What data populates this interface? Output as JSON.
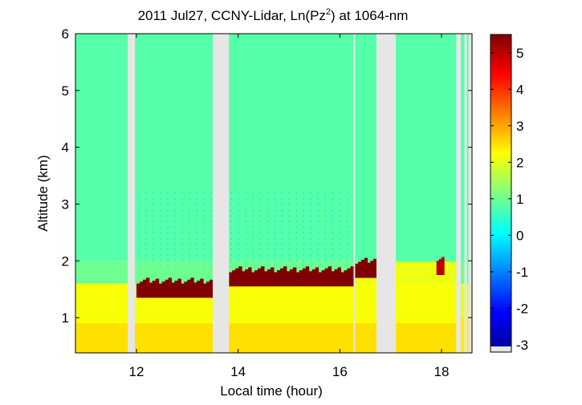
{
  "chart_data": {
    "type": "heatmap",
    "title": {
      "prefix": "2011 Jul27, CCNY-Lidar, Ln(Pz",
      "superscript": "2",
      "suffix": ") at 1064-nm"
    },
    "xlabel": "Local time (hour)",
    "ylabel": "Altitude (km)",
    "xlim": [
      10.8,
      18.6
    ],
    "ylim": [
      0.38,
      6
    ],
    "xticks": [
      12,
      14,
      16,
      18
    ],
    "yticks": [
      1,
      2,
      3,
      4,
      5,
      6
    ],
    "colorbar": {
      "range": [
        -3.2,
        5.5
      ],
      "ticks": [
        5,
        4,
        3,
        2,
        1,
        0,
        -1,
        -2,
        -3
      ],
      "colormap": "jet",
      "missing_color": "#e6e6e6"
    },
    "missing_data_intervals": [
      [
        11.83,
        11.97
      ],
      [
        13.5,
        13.82
      ],
      [
        16.27,
        16.3
      ],
      [
        16.72,
        17.1
      ],
      [
        18.29,
        18.38
      ],
      [
        18.45,
        18.5
      ],
      [
        18.53,
        18.6
      ]
    ],
    "boundary_layer_top_km": [
      {
        "start": 10.8,
        "end": 11.83,
        "height": 1.6
      },
      {
        "start": 11.97,
        "end": 13.5,
        "height": 1.58
      },
      {
        "start": 13.82,
        "end": 16.27,
        "height": 1.72
      },
      {
        "start": 16.3,
        "end": 16.72,
        "height": 1.92
      },
      {
        "start": 17.1,
        "end": 18.29,
        "height": 1.98
      }
    ],
    "aerosol_peak_segments": [
      {
        "start": 12.0,
        "end": 13.5,
        "height": 1.4,
        "value": 5.5
      },
      {
        "start": 13.82,
        "end": 16.27,
        "height": 1.6,
        "value": 5.5
      },
      {
        "start": 16.3,
        "end": 16.72,
        "height": 1.75,
        "value": 5.5
      },
      {
        "start": 17.9,
        "end": 18.05,
        "height": 1.8,
        "value": 5.0
      }
    ],
    "values_by_layer": [
      {
        "altitude_range": [
          0.38,
          1.0
        ],
        "value": 2.4
      },
      {
        "altitude_range": [
          1.0,
          1.6
        ],
        "value": 2.0
      },
      {
        "altitude_range": [
          1.6,
          2.0
        ],
        "value": 1.0
      },
      {
        "altitude_range": [
          2.0,
          6.0
        ],
        "value": 0.8
      }
    ]
  }
}
